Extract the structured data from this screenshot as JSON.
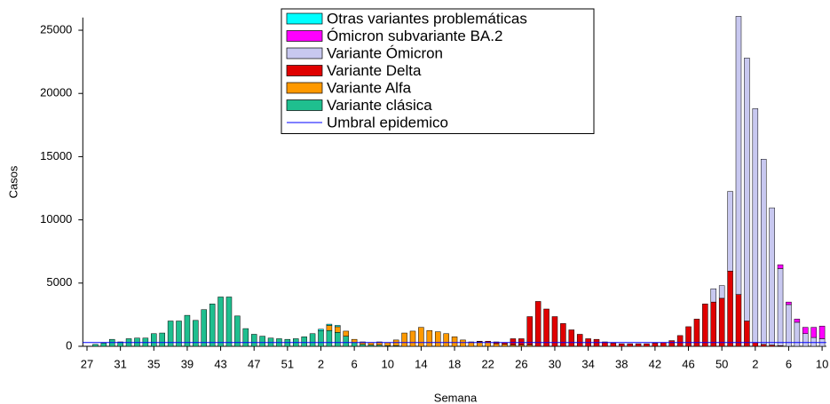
{
  "chart_data": {
    "type": "bar",
    "stacked": true,
    "x_label": "Semana",
    "y_label": "Casos",
    "categories": [
      "27",
      null,
      null,
      null,
      "31",
      null,
      null,
      null,
      "35",
      null,
      null,
      null,
      "39",
      null,
      null,
      null,
      "43",
      null,
      null,
      null,
      "47",
      null,
      null,
      null,
      "51",
      null,
      null,
      null,
      "2",
      null,
      null,
      null,
      "6",
      null,
      null,
      null,
      "10",
      null,
      null,
      null,
      "14",
      null,
      null,
      null,
      "18",
      null,
      null,
      null,
      "22",
      null,
      null,
      null,
      "26",
      null,
      null,
      null,
      "30",
      null,
      null,
      null,
      "34",
      null,
      null,
      null,
      "38",
      null,
      null,
      null,
      "42",
      null,
      null,
      null,
      "46",
      null,
      null,
      null,
      "50",
      null,
      null,
      null,
      "2",
      null,
      null,
      null,
      "6",
      null,
      null,
      null,
      "10"
    ],
    "series": [
      {
        "name": "Variante clásica",
        "color": "#1fbf8f",
        "values": [
          0,
          150,
          250,
          550,
          350,
          600,
          650,
          650,
          1000,
          1050,
          2000,
          2000,
          2450,
          2050,
          2900,
          3350,
          3900,
          3900,
          2400,
          1400,
          950,
          800,
          650,
          600,
          550,
          600,
          750,
          1000,
          1250,
          1250,
          1100,
          800,
          300,
          150,
          100,
          100,
          50,
          50,
          0,
          0,
          0,
          0,
          0,
          0,
          0,
          0,
          0,
          0,
          0,
          0,
          0,
          0,
          0,
          0,
          0,
          0,
          0,
          0,
          0,
          0,
          0,
          0,
          0,
          0,
          0,
          0,
          0,
          0,
          0,
          0,
          0,
          0,
          0,
          0,
          0,
          0,
          0,
          0,
          0,
          0,
          0,
          0,
          0,
          0,
          0,
          0,
          0,
          0,
          0
        ]
      },
      {
        "name": "Variante Alfa",
        "color": "#ff9900",
        "values": [
          0,
          0,
          0,
          0,
          0,
          0,
          0,
          0,
          0,
          0,
          0,
          0,
          0,
          0,
          0,
          0,
          0,
          0,
          0,
          0,
          0,
          0,
          0,
          0,
          0,
          0,
          0,
          0,
          0,
          400,
          450,
          400,
          250,
          200,
          200,
          250,
          250,
          450,
          1050,
          1200,
          1500,
          1250,
          1150,
          1000,
          750,
          500,
          350,
          350,
          300,
          200,
          150,
          100,
          100,
          100,
          0,
          0,
          0,
          0,
          0,
          0,
          0,
          0,
          0,
          0,
          0,
          0,
          0,
          0,
          0,
          0,
          0,
          0,
          0,
          0,
          0,
          0,
          0,
          0,
          0,
          0,
          0,
          0,
          0,
          0,
          0,
          0,
          0,
          0,
          0
        ]
      },
      {
        "name": "Variante Delta",
        "color": "#e00000",
        "values": [
          0,
          0,
          0,
          0,
          0,
          0,
          0,
          0,
          0,
          0,
          0,
          0,
          0,
          0,
          0,
          0,
          0,
          0,
          0,
          0,
          0,
          0,
          0,
          0,
          0,
          0,
          0,
          0,
          0,
          0,
          0,
          0,
          0,
          0,
          0,
          0,
          0,
          0,
          0,
          0,
          0,
          0,
          0,
          0,
          0,
          0,
          0,
          50,
          100,
          150,
          150,
          500,
          500,
          2250,
          3550,
          2950,
          2350,
          1800,
          1300,
          950,
          600,
          550,
          350,
          250,
          200,
          200,
          200,
          200,
          250,
          300,
          450,
          850,
          1550,
          2150,
          3350,
          3500,
          3800,
          5950,
          4100,
          2000,
          300,
          150,
          100,
          50,
          0,
          0,
          0,
          0,
          0
        ]
      },
      {
        "name": "Variante Ómicron",
        "color": "#c8c8f0",
        "values": [
          0,
          0,
          0,
          0,
          0,
          0,
          0,
          0,
          0,
          0,
          0,
          0,
          0,
          0,
          0,
          0,
          0,
          0,
          0,
          0,
          0,
          0,
          0,
          0,
          0,
          0,
          0,
          0,
          0,
          0,
          0,
          0,
          0,
          0,
          0,
          0,
          0,
          0,
          0,
          0,
          0,
          0,
          0,
          0,
          0,
          0,
          0,
          0,
          0,
          0,
          0,
          0,
          0,
          0,
          0,
          0,
          0,
          0,
          0,
          0,
          0,
          0,
          0,
          0,
          0,
          0,
          0,
          0,
          0,
          0,
          0,
          0,
          0,
          0,
          0,
          1050,
          1000,
          6300,
          22000,
          20800,
          18500,
          14650,
          10850,
          6100,
          3300,
          1900,
          1000,
          700,
          600
        ]
      },
      {
        "name": "Ómicron subvariante BA.2",
        "color": "#ff00ff",
        "values": [
          0,
          0,
          0,
          0,
          0,
          0,
          0,
          0,
          0,
          0,
          0,
          0,
          0,
          0,
          0,
          0,
          0,
          0,
          0,
          0,
          0,
          0,
          0,
          0,
          0,
          0,
          0,
          0,
          0,
          0,
          0,
          0,
          0,
          0,
          0,
          0,
          0,
          0,
          0,
          0,
          0,
          0,
          0,
          0,
          0,
          0,
          0,
          0,
          0,
          0,
          0,
          0,
          0,
          0,
          0,
          0,
          0,
          0,
          0,
          0,
          0,
          0,
          0,
          0,
          0,
          0,
          0,
          0,
          0,
          0,
          0,
          0,
          0,
          0,
          0,
          0,
          0,
          0,
          0,
          0,
          0,
          0,
          0,
          300,
          200,
          250,
          500,
          800,
          1000
        ]
      },
      {
        "name": "Otras variantes problemáticas",
        "color": "#00ffff",
        "values": [
          0,
          0,
          0,
          0,
          0,
          0,
          0,
          0,
          0,
          0,
          0,
          0,
          0,
          0,
          0,
          0,
          0,
          0,
          0,
          0,
          0,
          0,
          0,
          0,
          0,
          0,
          0,
          0,
          100,
          100,
          100,
          0,
          0,
          0,
          0,
          0,
          0,
          0,
          0,
          0,
          0,
          0,
          0,
          0,
          0,
          0,
          0,
          0,
          0,
          0,
          0,
          0,
          0,
          0,
          0,
          0,
          0,
          0,
          0,
          0,
          0,
          0,
          0,
          0,
          0,
          0,
          0,
          0,
          0,
          0,
          0,
          0,
          0,
          0,
          0,
          0,
          0,
          0,
          0,
          0,
          0,
          0,
          0,
          0,
          0,
          0,
          0,
          0,
          0
        ]
      }
    ],
    "threshold": {
      "name": "Umbral epidemico",
      "color": "#0000ff",
      "value": 300
    },
    "ylim": [
      0,
      26000
    ],
    "yticks": [
      0,
      5000,
      10000,
      15000,
      20000,
      25000
    ],
    "legend": "top-center"
  }
}
